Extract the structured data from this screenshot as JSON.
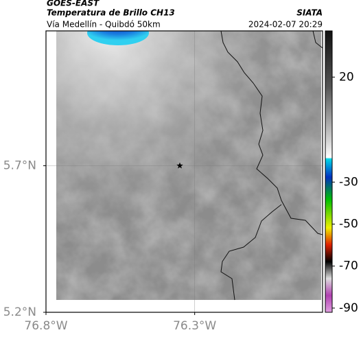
{
  "header": {
    "satellite": "GOES-EAST",
    "product": "Temperatura de Brillo CH13",
    "region": "Vía Medellín - Quibdó 50km",
    "source": "SIATA",
    "datetime": "2024-02-07 20:29"
  },
  "map": {
    "lonlim": [
      -76.8,
      -75.87
    ],
    "latlim": [
      5.2,
      6.16
    ],
    "lon_ticks": [
      {
        "value": -76.8,
        "label": "76.8°W"
      },
      {
        "value": -76.3,
        "label": "76.3°W"
      }
    ],
    "lat_ticks": [
      {
        "value": 5.2,
        "label": "5.2°N"
      },
      {
        "value": 5.7,
        "label": "5.7°N"
      }
    ],
    "grid": true,
    "marker": {
      "lon": -76.35,
      "lat": 5.7
    }
  },
  "colorbar": {
    "lim": [
      -92,
      42
    ],
    "ticks": [
      20,
      -30,
      -50,
      -70,
      -90
    ]
  }
}
